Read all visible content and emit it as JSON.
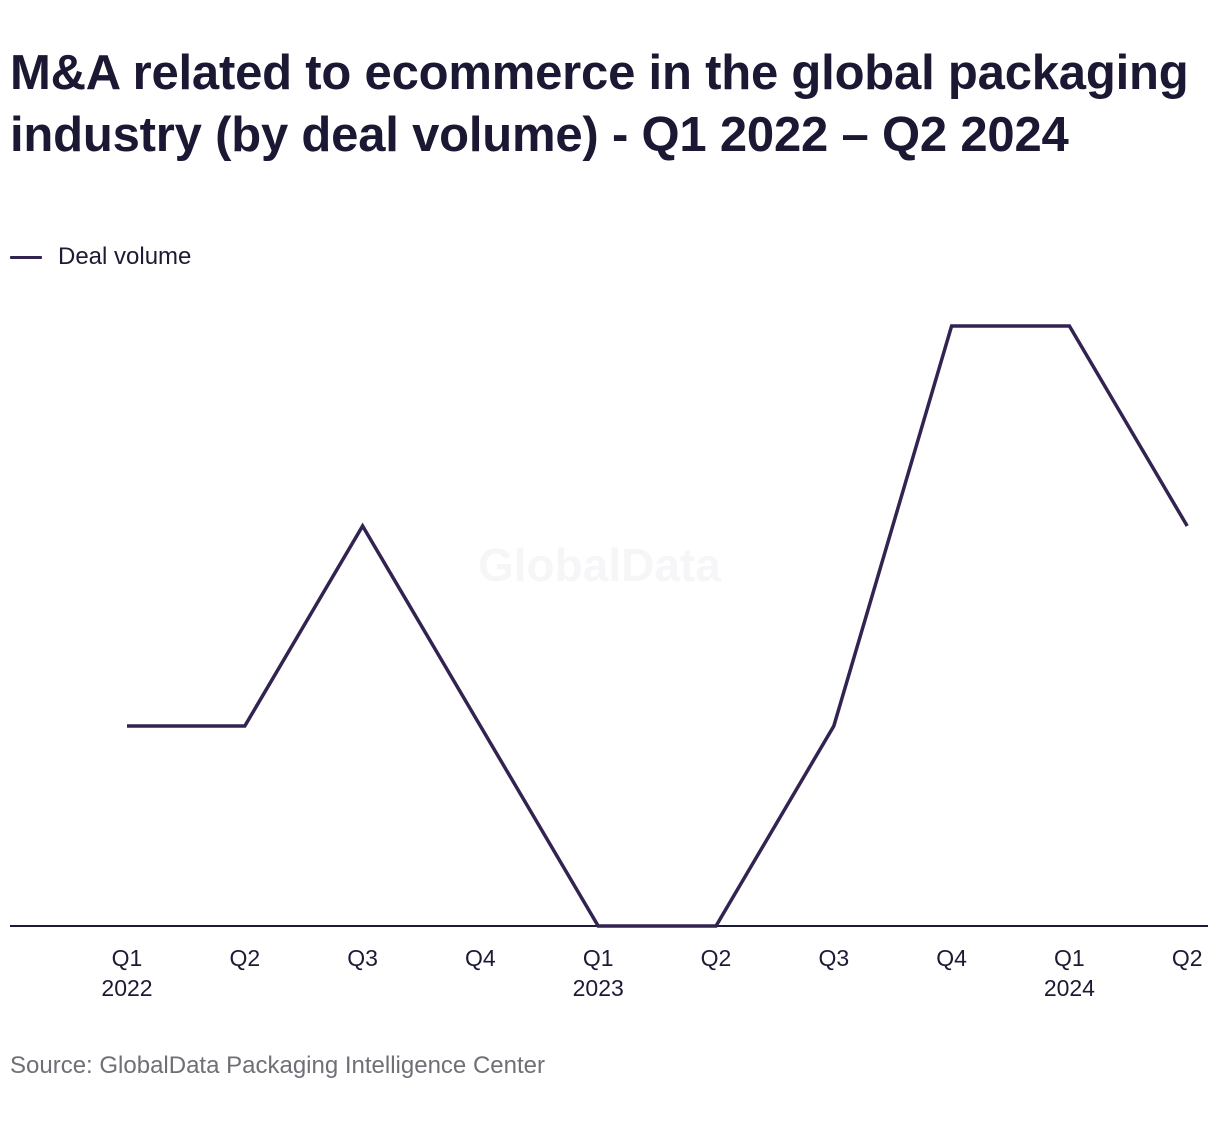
{
  "title": "M&A related to ecommerce in the global packaging industry (by deal volume) - Q1 2022 – Q2 2024",
  "watermark": "GlobalData",
  "source": "Source: GlobalData Packaging Intelligence Center",
  "colors": {
    "series": "#322350",
    "axis": "#1d1a34",
    "title": "#1a1833",
    "source": "#6f6f77"
  },
  "chart_data": {
    "type": "line",
    "title": "M&A related to ecommerce in the global packaging industry (by deal volume) - Q1 2022 – Q2 2024",
    "xlabel": "",
    "ylabel": "",
    "categories": [
      {
        "quarter": "Q1",
        "year": "2022"
      },
      {
        "quarter": "Q2",
        "year": ""
      },
      {
        "quarter": "Q3",
        "year": ""
      },
      {
        "quarter": "Q4",
        "year": ""
      },
      {
        "quarter": "Q1",
        "year": "2023"
      },
      {
        "quarter": "Q2",
        "year": ""
      },
      {
        "quarter": "Q3",
        "year": ""
      },
      {
        "quarter": "Q4",
        "year": ""
      },
      {
        "quarter": "Q1",
        "year": "2024"
      },
      {
        "quarter": "Q2",
        "year": ""
      }
    ],
    "series": [
      {
        "name": "Deal volume",
        "values": [
          1,
          1,
          2,
          1,
          0,
          0,
          1,
          3,
          3,
          2
        ]
      }
    ],
    "ylim": [
      0,
      3
    ],
    "grid": false,
    "y_axis_visible": false,
    "legend": "top-left"
  }
}
